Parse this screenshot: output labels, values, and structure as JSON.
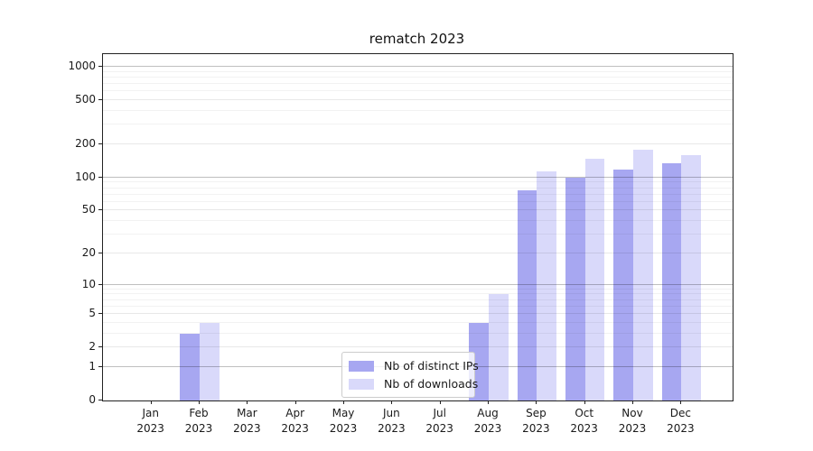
{
  "title": "rematch 2023",
  "chart_data": {
    "type": "bar",
    "title": "rematch 2023",
    "scale": "log1p",
    "grid": "on, drawn above bars",
    "categories": [
      "Jan 2023",
      "Feb 2023",
      "Mar 2023",
      "Apr 2023",
      "May 2023",
      "Jun 2023",
      "Jul 2023",
      "Aug 2023",
      "Sep 2023",
      "Oct 2023",
      "Nov 2023",
      "Dec 2023"
    ],
    "series": [
      {
        "name": "Nb of distinct IPs",
        "color": "#a7a7f1",
        "values": [
          0,
          3,
          0,
          0,
          0,
          0,
          0,
          4,
          76,
          100,
          118,
          134
        ]
      },
      {
        "name": "Nb of downloads",
        "color": "#d9d9fa",
        "values": [
          0,
          4,
          0,
          0,
          0,
          0,
          0,
          8,
          113,
          148,
          178,
          160
        ]
      }
    ],
    "xlabel": "",
    "ylabel": "",
    "y_ticks": [
      0,
      1,
      2,
      5,
      10,
      20,
      50,
      100,
      200,
      500,
      1000
    ],
    "y_minor_ticks": [
      3,
      4,
      6,
      7,
      8,
      9,
      30,
      40,
      60,
      70,
      80,
      90,
      300,
      400,
      600,
      700,
      800,
      900
    ],
    "ylim": [
      0,
      1300
    ],
    "legend": {
      "position": "lower center",
      "items": [
        "Nb of distinct IPs",
        "Nb of downloads"
      ]
    }
  }
}
